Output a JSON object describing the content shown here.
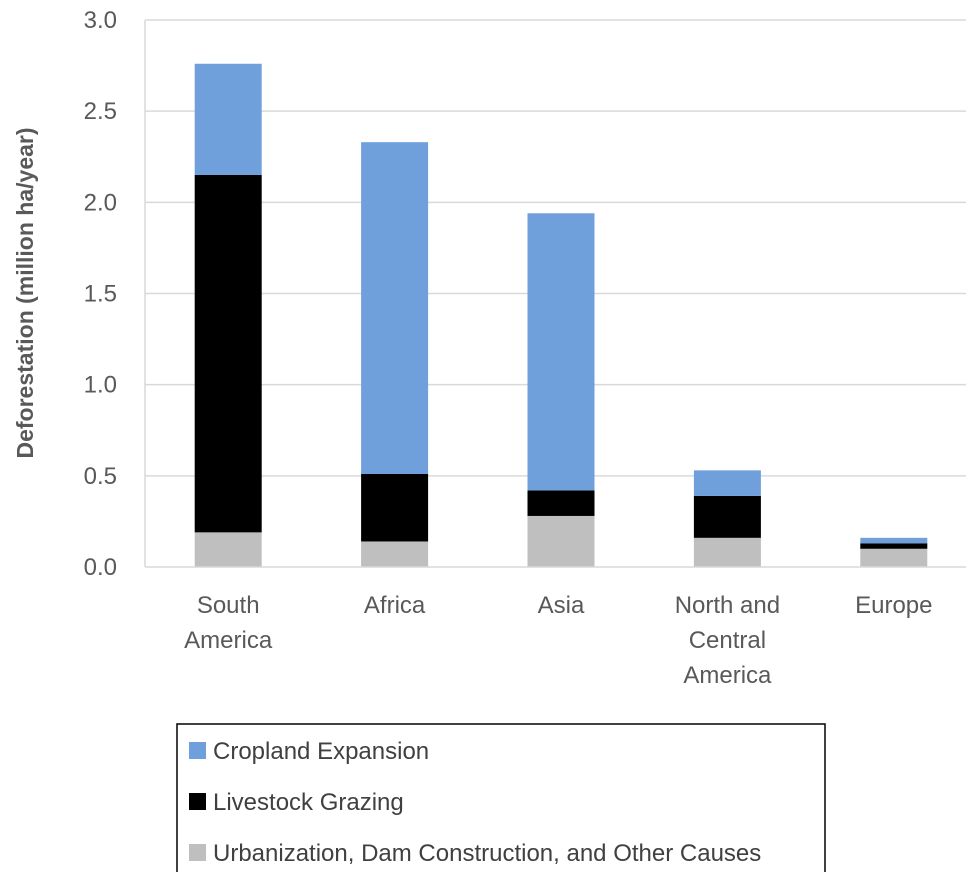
{
  "chart_data": {
    "type": "bar",
    "stacked": true,
    "title": "",
    "xlabel": "",
    "ylabel": "Deforestation (million ha/year)",
    "ylim": [
      0,
      3.0
    ],
    "yticks": [
      "0.0",
      "0.5",
      "1.0",
      "1.5",
      "2.0",
      "2.5",
      "3.0"
    ],
    "grid": true,
    "legend_position": "bottom",
    "categories": [
      [
        "South",
        "America"
      ],
      [
        "Africa"
      ],
      [
        "Asia"
      ],
      [
        "North and",
        "Central",
        "America"
      ],
      [
        "Europe"
      ]
    ],
    "series": [
      {
        "name": "Urbanization, Dam Construction, and Other Causes",
        "color": "#bfbfbf",
        "values": [
          0.19,
          0.14,
          0.28,
          0.16,
          0.1
        ]
      },
      {
        "name": "Livestock Grazing",
        "color": "#000000",
        "values": [
          1.96,
          0.37,
          0.14,
          0.23,
          0.03
        ]
      },
      {
        "name": "Cropland Expansion",
        "color": "#6fa0dc",
        "values": [
          0.61,
          1.82,
          1.52,
          0.14,
          0.03
        ]
      }
    ],
    "legend_order": [
      "Cropland Expansion",
      "Livestock Grazing",
      "Urbanization, Dam Construction, and Other Causes"
    ]
  }
}
